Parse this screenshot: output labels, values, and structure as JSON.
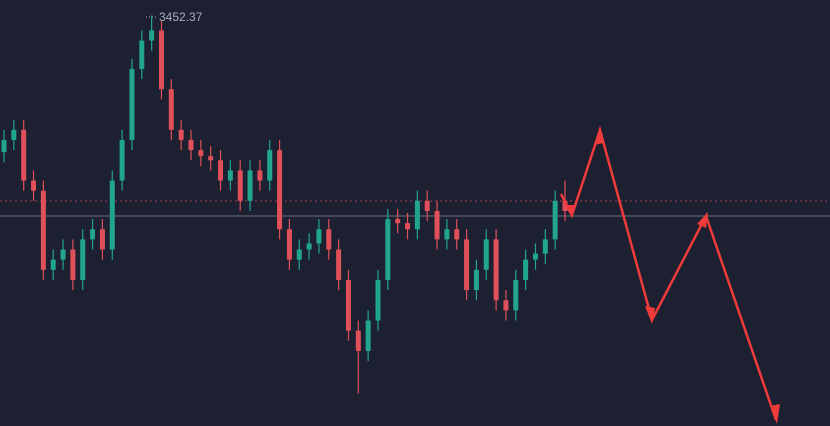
{
  "chart_data": {
    "type": "candlestick",
    "up_color": "#22a58d",
    "down_color": "#e0505a",
    "ylim": [
      3250,
      3460
    ],
    "open": [
      3385,
      3391,
      3396,
      3371,
      3366,
      3327,
      3332,
      3337,
      3322,
      3342,
      3347,
      3337,
      3371,
      3391,
      3426,
      3440,
      3445,
      3416,
      3396,
      3391,
      3386,
      3383,
      3381,
      3371,
      3376,
      3361,
      3376,
      3371,
      3386,
      3347,
      3332,
      3337,
      3340,
      3347,
      3337,
      3322,
      3297,
      3287,
      3302,
      3322,
      3352,
      3350,
      3347,
      3361,
      3356,
      3342,
      3347,
      3342,
      3317,
      3327,
      3342,
      3312,
      3307,
      3322,
      3332,
      3335,
      3342,
      3361
    ],
    "high": [
      3396,
      3401,
      3401,
      3376,
      3371,
      3337,
      3342,
      3342,
      3347,
      3352,
      3352,
      3376,
      3396,
      3431,
      3445,
      3452.37,
      3450,
      3421,
      3401,
      3396,
      3391,
      3388,
      3386,
      3381,
      3381,
      3381,
      3381,
      3391,
      3391,
      3352,
      3342,
      3345,
      3352,
      3352,
      3342,
      3327,
      3302,
      3307,
      3327,
      3357,
      3357,
      3355,
      3366,
      3366,
      3361,
      3352,
      3352,
      3347,
      3332,
      3347,
      3347,
      3317,
      3327,
      3337,
      3340,
      3347,
      3366,
      3371
    ],
    "low": [
      3380,
      3386,
      3366,
      3361,
      3322,
      3322,
      3327,
      3317,
      3317,
      3337,
      3332,
      3332,
      3366,
      3386,
      3421,
      3435,
      3411,
      3391,
      3386,
      3381,
      3378,
      3376,
      3366,
      3366,
      3356,
      3356,
      3366,
      3366,
      3342,
      3327,
      3327,
      3332,
      3335,
      3332,
      3317,
      3292,
      3266,
      3282,
      3297,
      3317,
      3345,
      3342,
      3342,
      3351,
      3337,
      3337,
      3337,
      3312,
      3312,
      3322,
      3307,
      3302,
      3302,
      3317,
      3327,
      3330,
      3337,
      3351
    ],
    "close": [
      3391,
      3396,
      3371,
      3366,
      3327,
      3332,
      3337,
      3322,
      3342,
      3347,
      3337,
      3371,
      3391,
      3426,
      3440,
      3445,
      3416,
      3396,
      3391,
      3386,
      3383,
      3381,
      3371,
      3376,
      3361,
      3376,
      3371,
      3386,
      3347,
      3332,
      3337,
      3340,
      3347,
      3337,
      3322,
      3297,
      3287,
      3302,
      3322,
      3352,
      3350,
      3347,
      3361,
      3356,
      3342,
      3347,
      3342,
      3317,
      3327,
      3342,
      3312,
      3307,
      3322,
      3332,
      3335,
      3342,
      3361,
      3356
    ]
  }
}
